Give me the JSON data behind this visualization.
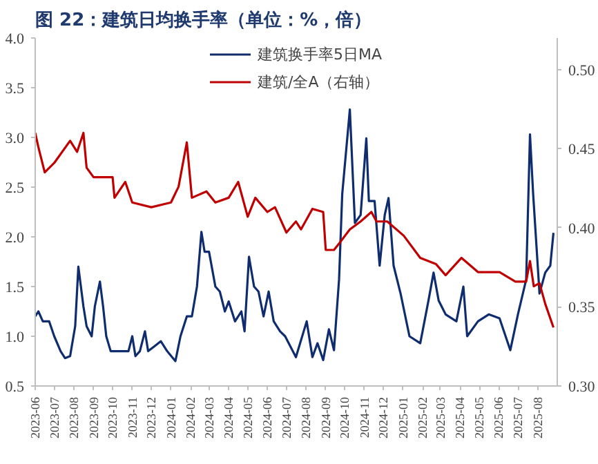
{
  "chart_data": {
    "type": "line",
    "title": "图 22：建筑日均换手率（单位：%，倍）",
    "xlim": [
      "2023-06-01",
      "2025-09-01"
    ],
    "xticks": [
      "2023-06",
      "2023-07",
      "2023-08",
      "2023-09",
      "2023-10",
      "2023-11",
      "2023-12",
      "2024-01",
      "2024-02",
      "2024-03",
      "2024-04",
      "2024-05",
      "2024-06",
      "2024-07",
      "2024-08",
      "2024-09",
      "2024-10",
      "2024-11",
      "2024-12",
      "2025-01",
      "2025-02",
      "2025-03",
      "2025-04",
      "2025-05",
      "2025-06",
      "2025-07",
      "2025-08"
    ],
    "ylim": [
      0.5,
      4.0
    ],
    "yticks": [
      {
        "value": 0.5,
        "label": "0.5"
      },
      {
        "value": 1.0,
        "label": "1.0"
      },
      {
        "value": 1.5,
        "label": "1.5"
      },
      {
        "value": 2.0,
        "label": "2.0"
      },
      {
        "value": 2.5,
        "label": "2.5"
      },
      {
        "value": 3.0,
        "label": "3.0"
      },
      {
        "value": 3.5,
        "label": "3.5"
      },
      {
        "value": 4.0,
        "label": "4.0"
      }
    ],
    "y2lim": [
      0.3,
      0.52
    ],
    "y2ticks": [
      {
        "value": 0.3,
        "label": "0.30"
      },
      {
        "value": 0.35,
        "label": "0.35"
      },
      {
        "value": 0.4,
        "label": "0.40"
      },
      {
        "value": 0.45,
        "label": "0.45"
      },
      {
        "value": 0.5,
        "label": "0.50"
      }
    ],
    "legend": "top",
    "grid": false,
    "line_style": "solid",
    "series": [
      {
        "name": "建筑换手率5日MA",
        "color": "#0f2d6e",
        "x": [
          "2023-06-01",
          "2023-06-06",
          "2023-06-13",
          "2023-06-23",
          "2023-07-01",
          "2023-07-11",
          "2023-07-18",
          "2023-07-26",
          "2023-08-03",
          "2023-08-08",
          "2023-08-16",
          "2023-08-21",
          "2023-08-29",
          "2023-09-03",
          "2023-09-11",
          "2023-09-16",
          "2023-09-21",
          "2023-09-28",
          "2023-10-06",
          "2023-10-16",
          "2023-10-26",
          "2023-11-01",
          "2023-11-06",
          "2023-11-13",
          "2023-11-21",
          "2023-11-26",
          "2023-12-06",
          "2023-12-16",
          "2023-12-26",
          "2024-01-08",
          "2024-01-16",
          "2024-01-26",
          "2024-02-03",
          "2024-02-11",
          "2024-02-18",
          "2024-02-23",
          "2024-03-01",
          "2024-03-11",
          "2024-03-18",
          "2024-03-26",
          "2024-04-01",
          "2024-04-11",
          "2024-04-21",
          "2024-04-26",
          "2024-05-03",
          "2024-05-11",
          "2024-05-18",
          "2024-05-26",
          "2024-06-03",
          "2024-06-11",
          "2024-06-21",
          "2024-06-29",
          "2024-07-16",
          "2024-08-02",
          "2024-08-11",
          "2024-08-19",
          "2024-08-28",
          "2024-09-06",
          "2024-09-14",
          "2024-09-22",
          "2024-09-27",
          "2024-10-09",
          "2024-10-17",
          "2024-10-26",
          "2024-11-04",
          "2024-11-08",
          "2024-11-17",
          "2024-11-25",
          "2024-12-03",
          "2024-12-09",
          "2024-12-17",
          "2024-12-28",
          "2025-01-11",
          "2025-01-28",
          "2025-02-10",
          "2025-02-18",
          "2025-02-26",
          "2025-03-09",
          "2025-03-26",
          "2025-04-06",
          "2025-04-12",
          "2025-04-29",
          "2025-05-16",
          "2025-06-02",
          "2025-06-19",
          "2025-07-01",
          "2025-07-14",
          "2025-07-20",
          "2025-07-25",
          "2025-08-04",
          "2025-08-13",
          "2025-08-21",
          "2025-08-26"
        ],
        "values": [
          1.2,
          1.25,
          1.15,
          1.15,
          1.0,
          0.85,
          0.78,
          0.8,
          1.1,
          1.7,
          1.3,
          1.1,
          1.0,
          1.3,
          1.55,
          1.3,
          1.0,
          0.85,
          0.85,
          0.85,
          0.85,
          1.0,
          0.8,
          0.85,
          1.05,
          0.85,
          0.9,
          0.95,
          0.85,
          0.75,
          1.0,
          1.2,
          1.2,
          1.5,
          2.05,
          1.85,
          1.85,
          1.5,
          1.45,
          1.25,
          1.35,
          1.15,
          1.25,
          1.05,
          1.8,
          1.5,
          1.45,
          1.2,
          1.45,
          1.15,
          1.05,
          1.0,
          0.79,
          1.15,
          0.79,
          0.93,
          0.76,
          1.07,
          0.86,
          1.57,
          2.43,
          3.28,
          2.14,
          2.22,
          2.99,
          2.36,
          2.36,
          1.71,
          2.22,
          2.39,
          1.71,
          1.43,
          1.0,
          0.93,
          1.36,
          1.64,
          1.36,
          1.22,
          1.15,
          1.5,
          1.0,
          1.15,
          1.22,
          1.18,
          0.86,
          1.22,
          1.57,
          3.03,
          2.43,
          1.43,
          1.64,
          1.71,
          2.04
        ]
      },
      {
        "name": "建筑/全A（右轴）",
        "color": "#c00000",
        "axis": "y2",
        "x": [
          "2023-06-01",
          "2023-06-06",
          "2023-06-16",
          "2023-07-01",
          "2023-07-26",
          "2023-08-06",
          "2023-08-16",
          "2023-08-21",
          "2023-09-01",
          "2023-10-01",
          "2023-10-04",
          "2023-10-21",
          "2023-11-01",
          "2023-12-01",
          "2024-01-01",
          "2024-01-13",
          "2024-01-26",
          "2024-02-03",
          "2024-02-26",
          "2024-03-11",
          "2024-04-01",
          "2024-04-16",
          "2024-05-01",
          "2024-05-13",
          "2024-06-01",
          "2024-06-13",
          "2024-07-01",
          "2024-07-16",
          "2024-07-24",
          "2024-08-11",
          "2024-08-28",
          "2024-09-01",
          "2024-09-14",
          "2024-09-22",
          "2024-10-09",
          "2024-10-26",
          "2024-11-12",
          "2024-11-20",
          "2024-12-07",
          "2025-01-02",
          "2025-01-28",
          "2025-02-22",
          "2025-03-09",
          "2025-04-03",
          "2025-04-29",
          "2025-06-02",
          "2025-06-27",
          "2025-07-14",
          "2025-07-20",
          "2025-07-26",
          "2025-08-04",
          "2025-08-13",
          "2025-08-26"
        ],
        "values": [
          0.46,
          0.451,
          0.435,
          0.441,
          0.455,
          0.448,
          0.46,
          0.438,
          0.432,
          0.432,
          0.419,
          0.429,
          0.416,
          0.413,
          0.416,
          0.426,
          0.454,
          0.419,
          0.423,
          0.416,
          0.419,
          0.429,
          0.407,
          0.419,
          0.41,
          0.413,
          0.397,
          0.404,
          0.399,
          0.412,
          0.41,
          0.386,
          0.386,
          0.39,
          0.399,
          0.404,
          0.41,
          0.404,
          0.404,
          0.395,
          0.381,
          0.377,
          0.37,
          0.381,
          0.372,
          0.372,
          0.366,
          0.366,
          0.379,
          0.363,
          0.365,
          0.352,
          0.337
        ]
      }
    ]
  }
}
